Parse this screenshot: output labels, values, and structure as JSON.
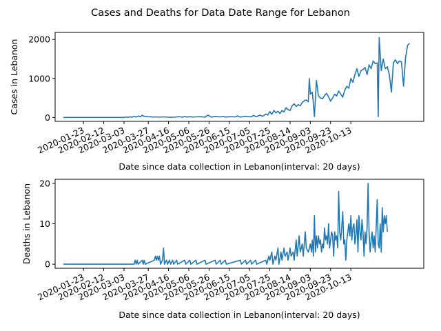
{
  "title": "Cases and Deaths for Data Date Range for Lebanon",
  "chart_data": [
    {
      "type": "line",
      "xlabel": "Date since data collection in Lebanon(interval: 20 days)",
      "ylabel": "Cases in Lebanon",
      "x_start": "2020-01-03",
      "x_ticks": [
        "2020-01-23",
        "2020-02-12",
        "2020-03-03",
        "2020-03-27",
        "2020-04-16",
        "2020-05-06",
        "2020-05-26",
        "2020-06-15",
        "2020-07-05",
        "2020-07-25",
        "2020-08-14",
        "2020-09-03",
        "2020-09-23",
        "2020-10-13"
      ],
      "y_ticks": [
        0,
        1000,
        2000
      ],
      "ylim": [
        -100,
        2180
      ],
      "grid": false,
      "series": [
        {
          "values": [
            [
              0,
              0
            ],
            [
              60,
              0
            ],
            [
              62,
              15
            ],
            [
              64,
              0
            ],
            [
              66,
              20
            ],
            [
              68,
              5
            ],
            [
              70,
              30
            ],
            [
              72,
              10
            ],
            [
              74,
              40
            ],
            [
              76,
              20
            ],
            [
              78,
              55
            ],
            [
              80,
              30
            ],
            [
              82,
              25
            ],
            [
              84,
              15
            ],
            [
              86,
              20
            ],
            [
              88,
              10
            ],
            [
              90,
              15
            ],
            [
              95,
              10
            ],
            [
              100,
              15
            ],
            [
              105,
              5
            ],
            [
              110,
              10
            ],
            [
              115,
              20
            ],
            [
              118,
              5
            ],
            [
              120,
              30
            ],
            [
              122,
              10
            ],
            [
              125,
              20
            ],
            [
              128,
              10
            ],
            [
              130,
              15
            ],
            [
              135,
              20
            ],
            [
              140,
              10
            ],
            [
              143,
              60
            ],
            [
              146,
              10
            ],
            [
              150,
              25
            ],
            [
              155,
              15
            ],
            [
              158,
              30
            ],
            [
              160,
              10
            ],
            [
              165,
              20
            ],
            [
              170,
              15
            ],
            [
              172,
              40
            ],
            [
              175,
              10
            ],
            [
              180,
              30
            ],
            [
              185,
              15
            ],
            [
              188,
              50
            ],
            [
              191,
              20
            ],
            [
              194,
              60
            ],
            [
              197,
              30
            ],
            [
              200,
              90
            ],
            [
              202,
              60
            ],
            [
              204,
              150
            ],
            [
              206,
              80
            ],
            [
              208,
              180
            ],
            [
              210,
              120
            ],
            [
              212,
              160
            ],
            [
              214,
              100
            ],
            [
              216,
              180
            ],
            [
              218,
              140
            ],
            [
              220,
              250
            ],
            [
              222,
              200
            ],
            [
              224,
              180
            ],
            [
              226,
              300
            ],
            [
              228,
              350
            ],
            [
              230,
              280
            ],
            [
              232,
              330
            ],
            [
              234,
              300
            ],
            [
              236,
              380
            ],
            [
              238,
              430
            ],
            [
              240,
              450
            ],
            [
              242,
              400
            ],
            [
              243,
              1000
            ],
            [
              244,
              600
            ],
            [
              246,
              650
            ],
            [
              248,
              20
            ],
            [
              250,
              950
            ],
            [
              252,
              550
            ],
            [
              254,
              500
            ],
            [
              256,
              480
            ],
            [
              258,
              560
            ],
            [
              260,
              620
            ],
            [
              262,
              530
            ],
            [
              264,
              420
            ],
            [
              266,
              500
            ],
            [
              268,
              600
            ],
            [
              270,
              550
            ],
            [
              272,
              680
            ],
            [
              274,
              600
            ],
            [
              276,
              520
            ],
            [
              278,
              700
            ],
            [
              280,
              800
            ],
            [
              282,
              750
            ],
            [
              284,
              1000
            ],
            [
              286,
              900
            ],
            [
              288,
              1100
            ],
            [
              290,
              1250
            ],
            [
              292,
              1050
            ],
            [
              294,
              1200
            ],
            [
              296,
              1230
            ],
            [
              298,
              1280
            ],
            [
              300,
              1100
            ],
            [
              302,
              1350
            ],
            [
              304,
              1250
            ],
            [
              306,
              1450
            ],
            [
              308,
              1380
            ],
            [
              310,
              1400
            ],
            [
              311,
              20
            ],
            [
              312,
              2050
            ],
            [
              314,
              1200
            ],
            [
              316,
              1500
            ],
            [
              318,
              1250
            ],
            [
              320,
              1300
            ],
            [
              322,
              1100
            ],
            [
              324,
              650
            ],
            [
              326,
              1400
            ],
            [
              328,
              1480
            ],
            [
              330,
              1380
            ],
            [
              332,
              1450
            ],
            [
              334,
              1420
            ],
            [
              336,
              800
            ],
            [
              338,
              1520
            ],
            [
              340,
              1850
            ],
            [
              342,
              1900
            ]
          ]
        }
      ]
    },
    {
      "type": "line",
      "xlabel": "Date since data collection in Lebanon(interval: 20 days)",
      "ylabel": "Deaths in Lebanon",
      "x_start": "2020-01-03",
      "x_ticks": [
        "2020-01-23",
        "2020-02-12",
        "2020-03-03",
        "2020-03-27",
        "2020-04-16",
        "2020-05-06",
        "2020-05-26",
        "2020-06-15",
        "2020-07-05",
        "2020-07-25",
        "2020-08-14",
        "2020-09-03",
        "2020-09-23",
        "2020-10-13"
      ],
      "y_ticks": [
        0,
        10,
        20
      ],
      "ylim": [
        -1,
        21
      ],
      "grid": false,
      "series": [
        {
          "values": [
            [
              0,
              0
            ],
            [
              70,
              0
            ],
            [
              71,
              1
            ],
            [
              72,
              0
            ],
            [
              73,
              1
            ],
            [
              74,
              0
            ],
            [
              78,
              1
            ],
            [
              79,
              0
            ],
            [
              80,
              1
            ],
            [
              81,
              0
            ],
            [
              90,
              1
            ],
            [
              91,
              2
            ],
            [
              92,
              1
            ],
            [
              93,
              2
            ],
            [
              94,
              1
            ],
            [
              95,
              2
            ],
            [
              96,
              0
            ],
            [
              98,
              1
            ],
            [
              99,
              4
            ],
            [
              100,
              0
            ],
            [
              102,
              1
            ],
            [
              103,
              0
            ],
            [
              105,
              1
            ],
            [
              106,
              0
            ],
            [
              108,
              1
            ],
            [
              109,
              0
            ],
            [
              112,
              1
            ],
            [
              113,
              0
            ],
            [
              120,
              1
            ],
            [
              121,
              0
            ],
            [
              125,
              1
            ],
            [
              126,
              0
            ],
            [
              131,
              1
            ],
            [
              132,
              0
            ],
            [
              140,
              1
            ],
            [
              141,
              0
            ],
            [
              150,
              1
            ],
            [
              151,
              0
            ],
            [
              155,
              1
            ],
            [
              156,
              0
            ],
            [
              160,
              1
            ],
            [
              161,
              0
            ],
            [
              175,
              1
            ],
            [
              176,
              0
            ],
            [
              180,
              1
            ],
            [
              181,
              0
            ],
            [
              185,
              1
            ],
            [
              186,
              0
            ],
            [
              190,
              1
            ],
            [
              191,
              0
            ],
            [
              200,
              1
            ],
            [
              201,
              0
            ],
            [
              203,
              2
            ],
            [
              204,
              1
            ],
            [
              206,
              3
            ],
            [
              207,
              0
            ],
            [
              209,
              2
            ],
            [
              210,
              1
            ],
            [
              212,
              4
            ],
            [
              213,
              0
            ],
            [
              215,
              3
            ],
            [
              216,
              1
            ],
            [
              218,
              4
            ],
            [
              219,
              2
            ],
            [
              221,
              3
            ],
            [
              222,
              1
            ],
            [
              224,
              4
            ],
            [
              225,
              2
            ],
            [
              227,
              3
            ],
            [
              228,
              1
            ],
            [
              230,
              6
            ],
            [
              231,
              2
            ],
            [
              233,
              7
            ],
            [
              234,
              3
            ],
            [
              236,
              5
            ],
            [
              237,
              2
            ],
            [
              239,
              8
            ],
            [
              240,
              4
            ],
            [
              242,
              3
            ],
            [
              243,
              4
            ],
            [
              244,
              5
            ],
            [
              245,
              3
            ],
            [
              246,
              6
            ],
            [
              247,
              2
            ],
            [
              248,
              12
            ],
            [
              249,
              3
            ],
            [
              250,
              7
            ],
            [
              251,
              4
            ],
            [
              252,
              7
            ],
            [
              253,
              5
            ],
            [
              254,
              6
            ],
            [
              255,
              3
            ],
            [
              256,
              5
            ],
            [
              257,
              4
            ],
            [
              258,
              9
            ],
            [
              259,
              6
            ],
            [
              260,
              7
            ],
            [
              261,
              5
            ],
            [
              262,
              10
            ],
            [
              263,
              4
            ],
            [
              264,
              6
            ],
            [
              265,
              8
            ],
            [
              266,
              7
            ],
            [
              267,
              2
            ],
            [
              268,
              8
            ],
            [
              269,
              6
            ],
            [
              270,
              7
            ],
            [
              271,
              4
            ],
            [
              272,
              18
            ],
            [
              273,
              8
            ],
            [
              274,
              6
            ],
            [
              275,
              9
            ],
            [
              276,
              13
            ],
            [
              277,
              5
            ],
            [
              278,
              6
            ],
            [
              279,
              1
            ],
            [
              280,
              6
            ],
            [
              281,
              8
            ],
            [
              282,
              10
            ],
            [
              283,
              7
            ],
            [
              284,
              12
            ],
            [
              285,
              6
            ],
            [
              286,
              9
            ],
            [
              287,
              10
            ],
            [
              288,
              5
            ],
            [
              289,
              7
            ],
            [
              290,
              11
            ],
            [
              291,
              3
            ],
            [
              292,
              12
            ],
            [
              293,
              8
            ],
            [
              294,
              6
            ],
            [
              295,
              11
            ],
            [
              296,
              8
            ],
            [
              297,
              2
            ],
            [
              298,
              8
            ],
            [
              299,
              5
            ],
            [
              300,
              9
            ],
            [
              301,
              20
            ],
            [
              302,
              8
            ],
            [
              303,
              3
            ],
            [
              304,
              6
            ],
            [
              305,
              8
            ],
            [
              306,
              4
            ],
            [
              307,
              7
            ],
            [
              308,
              3
            ],
            [
              309,
              9
            ],
            [
              310,
              16
            ],
            [
              311,
              5
            ],
            [
              312,
              4
            ],
            [
              313,
              10
            ],
            [
              314,
              3
            ],
            [
              315,
              14
            ],
            [
              316,
              8
            ],
            [
              317,
              12
            ],
            [
              318,
              10
            ],
            [
              319,
              12
            ],
            [
              320,
              8
            ]
          ]
        }
      ]
    }
  ]
}
